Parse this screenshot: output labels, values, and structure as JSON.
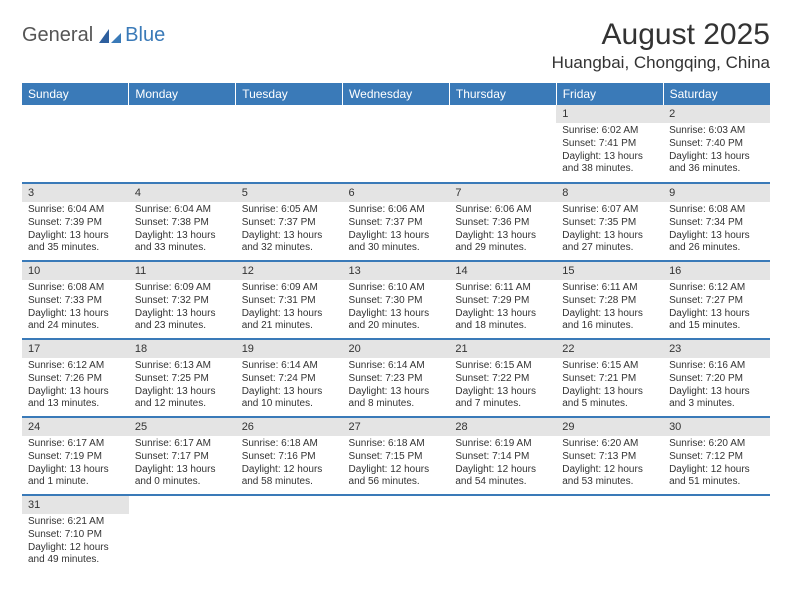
{
  "logo": {
    "general": "General",
    "blue": "Blue"
  },
  "header": {
    "month_title": "August 2025",
    "location": "Huangbai, Chongqing, China"
  },
  "colors": {
    "header_bg": "#3a7ab8",
    "header_fg": "#ffffff",
    "daynum_bg": "#e4e4e4",
    "row_divider": "#3a7ab8",
    "text": "#333333"
  },
  "weekdays": [
    "Sunday",
    "Monday",
    "Tuesday",
    "Wednesday",
    "Thursday",
    "Friday",
    "Saturday"
  ],
  "weeks": [
    [
      {
        "n": "",
        "sr": "",
        "ss": "",
        "dl": ""
      },
      {
        "n": "",
        "sr": "",
        "ss": "",
        "dl": ""
      },
      {
        "n": "",
        "sr": "",
        "ss": "",
        "dl": ""
      },
      {
        "n": "",
        "sr": "",
        "ss": "",
        "dl": ""
      },
      {
        "n": "",
        "sr": "",
        "ss": "",
        "dl": ""
      },
      {
        "n": "1",
        "sr": "Sunrise: 6:02 AM",
        "ss": "Sunset: 7:41 PM",
        "dl": "Daylight: 13 hours and 38 minutes."
      },
      {
        "n": "2",
        "sr": "Sunrise: 6:03 AM",
        "ss": "Sunset: 7:40 PM",
        "dl": "Daylight: 13 hours and 36 minutes."
      }
    ],
    [
      {
        "n": "3",
        "sr": "Sunrise: 6:04 AM",
        "ss": "Sunset: 7:39 PM",
        "dl": "Daylight: 13 hours and 35 minutes."
      },
      {
        "n": "4",
        "sr": "Sunrise: 6:04 AM",
        "ss": "Sunset: 7:38 PM",
        "dl": "Daylight: 13 hours and 33 minutes."
      },
      {
        "n": "5",
        "sr": "Sunrise: 6:05 AM",
        "ss": "Sunset: 7:37 PM",
        "dl": "Daylight: 13 hours and 32 minutes."
      },
      {
        "n": "6",
        "sr": "Sunrise: 6:06 AM",
        "ss": "Sunset: 7:37 PM",
        "dl": "Daylight: 13 hours and 30 minutes."
      },
      {
        "n": "7",
        "sr": "Sunrise: 6:06 AM",
        "ss": "Sunset: 7:36 PM",
        "dl": "Daylight: 13 hours and 29 minutes."
      },
      {
        "n": "8",
        "sr": "Sunrise: 6:07 AM",
        "ss": "Sunset: 7:35 PM",
        "dl": "Daylight: 13 hours and 27 minutes."
      },
      {
        "n": "9",
        "sr": "Sunrise: 6:08 AM",
        "ss": "Sunset: 7:34 PM",
        "dl": "Daylight: 13 hours and 26 minutes."
      }
    ],
    [
      {
        "n": "10",
        "sr": "Sunrise: 6:08 AM",
        "ss": "Sunset: 7:33 PM",
        "dl": "Daylight: 13 hours and 24 minutes."
      },
      {
        "n": "11",
        "sr": "Sunrise: 6:09 AM",
        "ss": "Sunset: 7:32 PM",
        "dl": "Daylight: 13 hours and 23 minutes."
      },
      {
        "n": "12",
        "sr": "Sunrise: 6:09 AM",
        "ss": "Sunset: 7:31 PM",
        "dl": "Daylight: 13 hours and 21 minutes."
      },
      {
        "n": "13",
        "sr": "Sunrise: 6:10 AM",
        "ss": "Sunset: 7:30 PM",
        "dl": "Daylight: 13 hours and 20 minutes."
      },
      {
        "n": "14",
        "sr": "Sunrise: 6:11 AM",
        "ss": "Sunset: 7:29 PM",
        "dl": "Daylight: 13 hours and 18 minutes."
      },
      {
        "n": "15",
        "sr": "Sunrise: 6:11 AM",
        "ss": "Sunset: 7:28 PM",
        "dl": "Daylight: 13 hours and 16 minutes."
      },
      {
        "n": "16",
        "sr": "Sunrise: 6:12 AM",
        "ss": "Sunset: 7:27 PM",
        "dl": "Daylight: 13 hours and 15 minutes."
      }
    ],
    [
      {
        "n": "17",
        "sr": "Sunrise: 6:12 AM",
        "ss": "Sunset: 7:26 PM",
        "dl": "Daylight: 13 hours and 13 minutes."
      },
      {
        "n": "18",
        "sr": "Sunrise: 6:13 AM",
        "ss": "Sunset: 7:25 PM",
        "dl": "Daylight: 13 hours and 12 minutes."
      },
      {
        "n": "19",
        "sr": "Sunrise: 6:14 AM",
        "ss": "Sunset: 7:24 PM",
        "dl": "Daylight: 13 hours and 10 minutes."
      },
      {
        "n": "20",
        "sr": "Sunrise: 6:14 AM",
        "ss": "Sunset: 7:23 PM",
        "dl": "Daylight: 13 hours and 8 minutes."
      },
      {
        "n": "21",
        "sr": "Sunrise: 6:15 AM",
        "ss": "Sunset: 7:22 PM",
        "dl": "Daylight: 13 hours and 7 minutes."
      },
      {
        "n": "22",
        "sr": "Sunrise: 6:15 AM",
        "ss": "Sunset: 7:21 PM",
        "dl": "Daylight: 13 hours and 5 minutes."
      },
      {
        "n": "23",
        "sr": "Sunrise: 6:16 AM",
        "ss": "Sunset: 7:20 PM",
        "dl": "Daylight: 13 hours and 3 minutes."
      }
    ],
    [
      {
        "n": "24",
        "sr": "Sunrise: 6:17 AM",
        "ss": "Sunset: 7:19 PM",
        "dl": "Daylight: 13 hours and 1 minute."
      },
      {
        "n": "25",
        "sr": "Sunrise: 6:17 AM",
        "ss": "Sunset: 7:17 PM",
        "dl": "Daylight: 13 hours and 0 minutes."
      },
      {
        "n": "26",
        "sr": "Sunrise: 6:18 AM",
        "ss": "Sunset: 7:16 PM",
        "dl": "Daylight: 12 hours and 58 minutes."
      },
      {
        "n": "27",
        "sr": "Sunrise: 6:18 AM",
        "ss": "Sunset: 7:15 PM",
        "dl": "Daylight: 12 hours and 56 minutes."
      },
      {
        "n": "28",
        "sr": "Sunrise: 6:19 AM",
        "ss": "Sunset: 7:14 PM",
        "dl": "Daylight: 12 hours and 54 minutes."
      },
      {
        "n": "29",
        "sr": "Sunrise: 6:20 AM",
        "ss": "Sunset: 7:13 PM",
        "dl": "Daylight: 12 hours and 53 minutes."
      },
      {
        "n": "30",
        "sr": "Sunrise: 6:20 AM",
        "ss": "Sunset: 7:12 PM",
        "dl": "Daylight: 12 hours and 51 minutes."
      }
    ],
    [
      {
        "n": "31",
        "sr": "Sunrise: 6:21 AM",
        "ss": "Sunset: 7:10 PM",
        "dl": "Daylight: 12 hours and 49 minutes."
      },
      {
        "n": "",
        "sr": "",
        "ss": "",
        "dl": ""
      },
      {
        "n": "",
        "sr": "",
        "ss": "",
        "dl": ""
      },
      {
        "n": "",
        "sr": "",
        "ss": "",
        "dl": ""
      },
      {
        "n": "",
        "sr": "",
        "ss": "",
        "dl": ""
      },
      {
        "n": "",
        "sr": "",
        "ss": "",
        "dl": ""
      },
      {
        "n": "",
        "sr": "",
        "ss": "",
        "dl": ""
      }
    ]
  ]
}
